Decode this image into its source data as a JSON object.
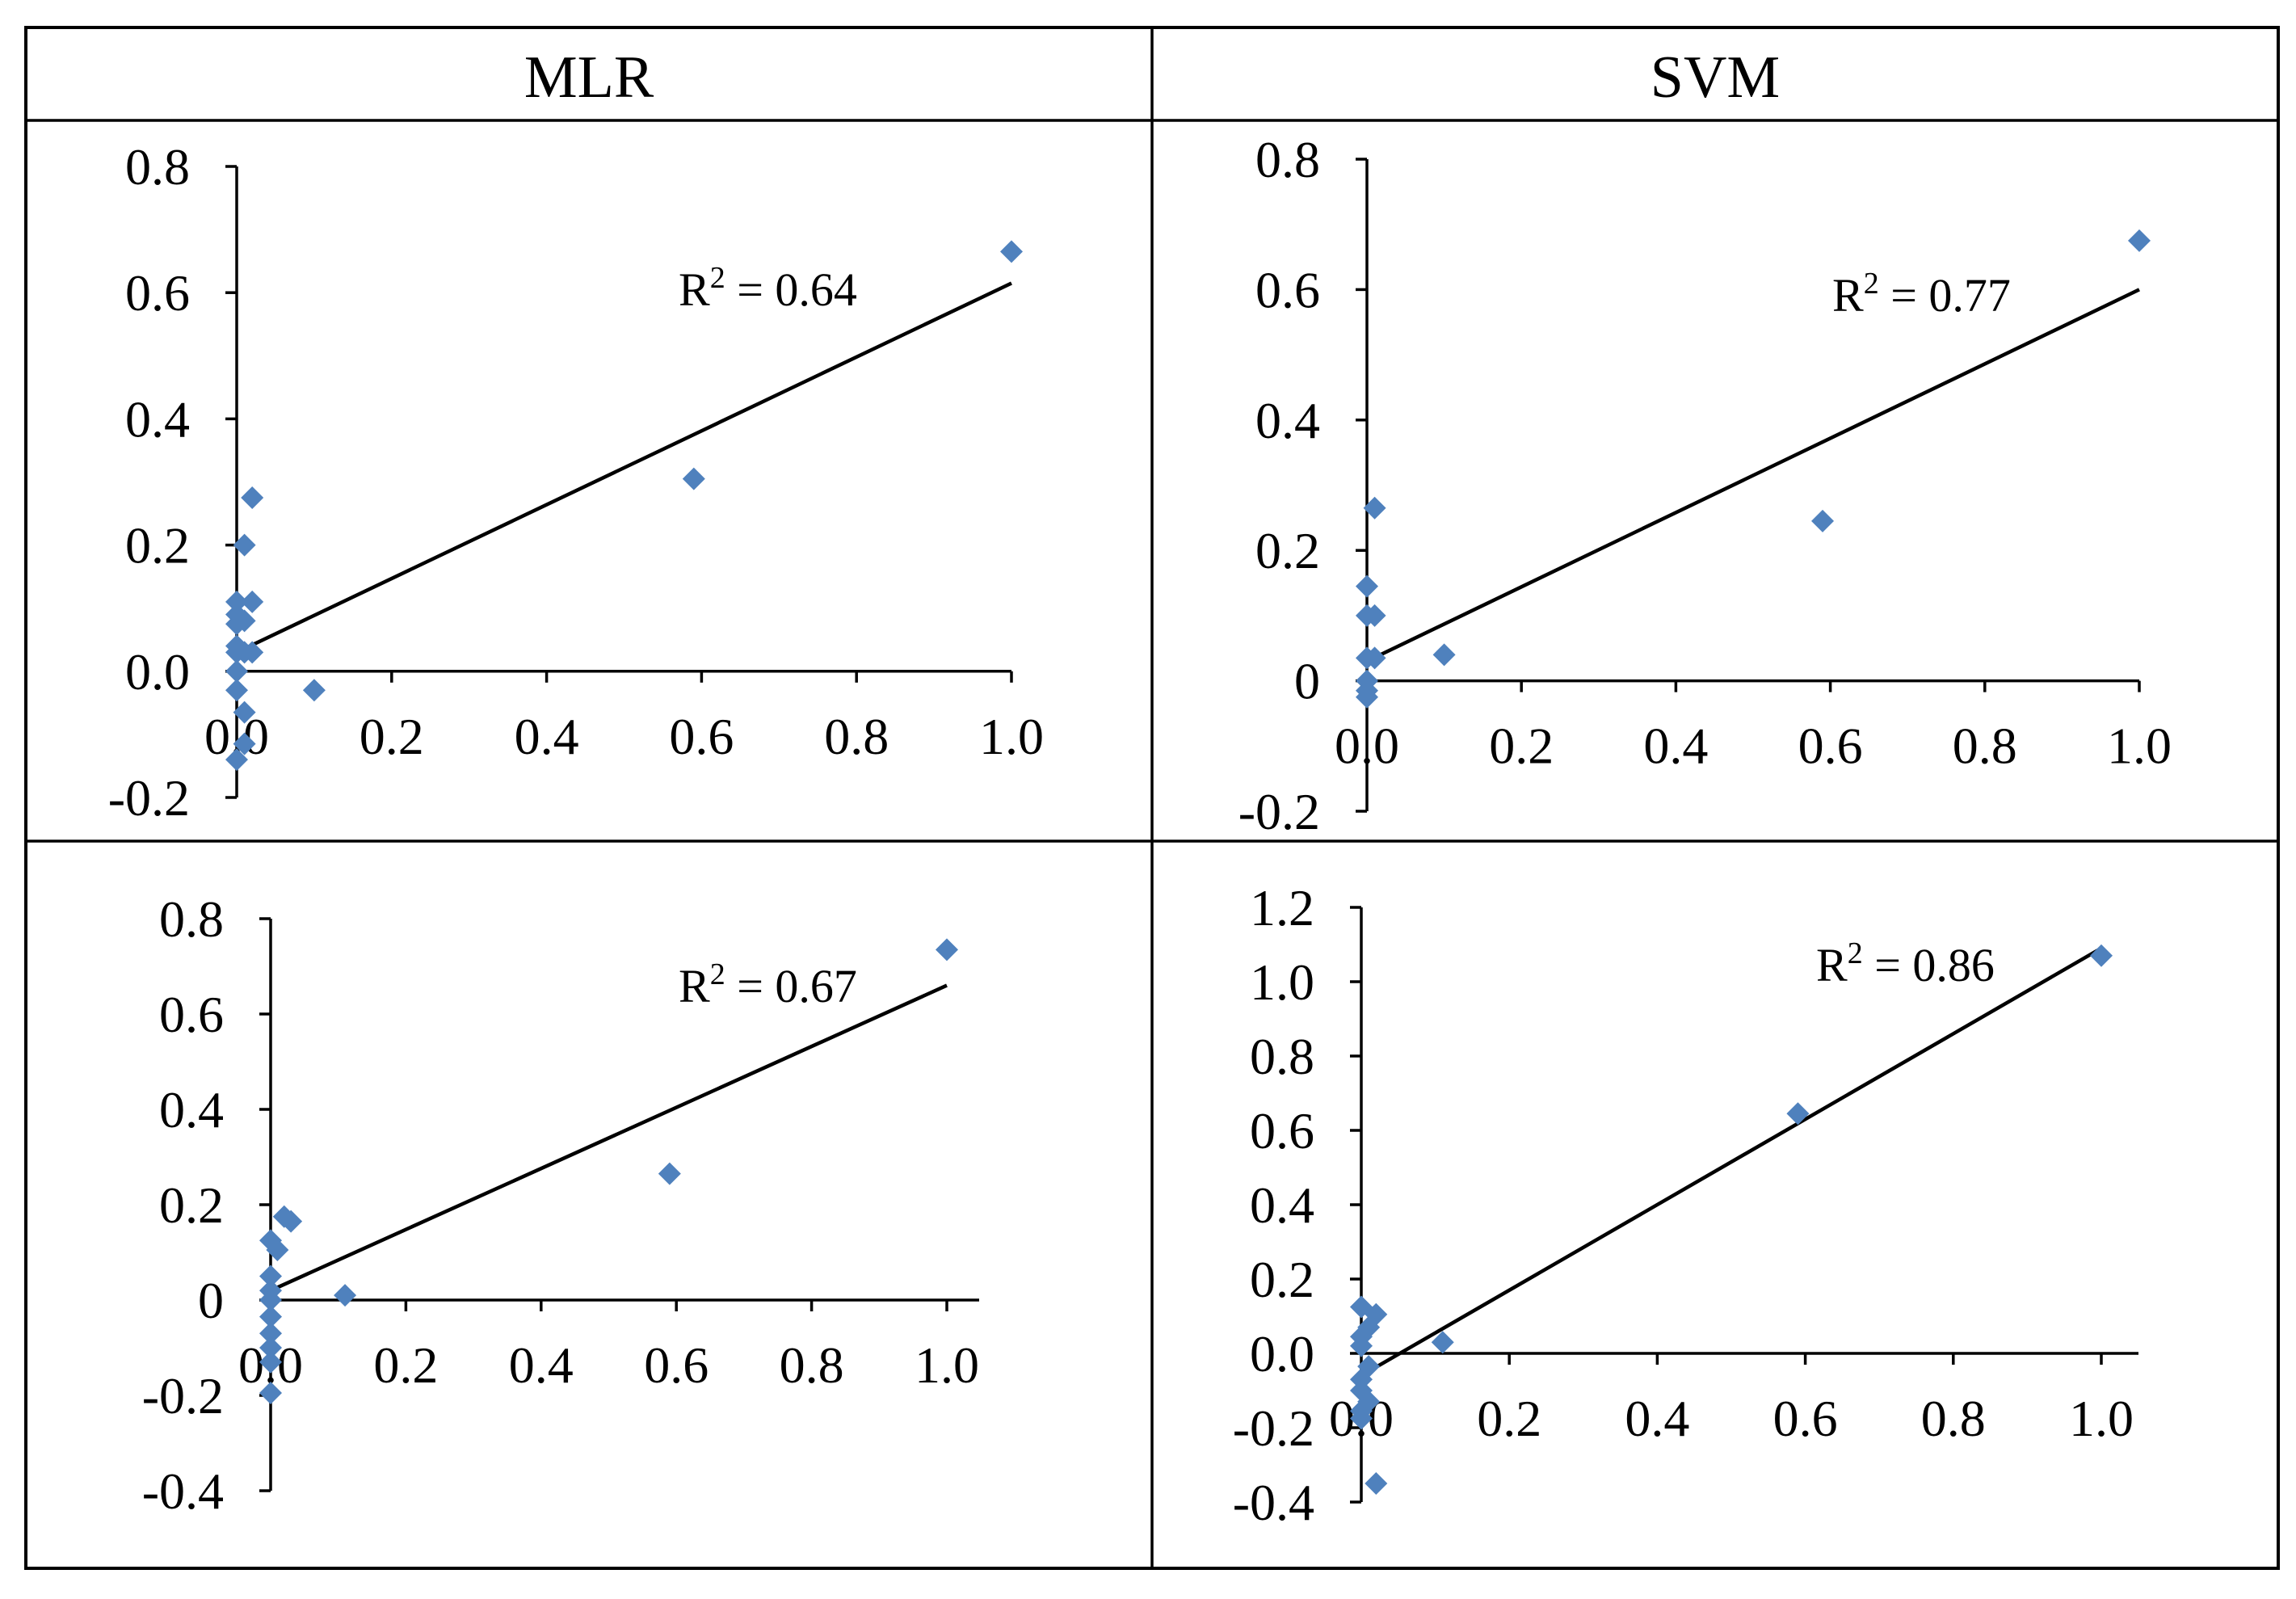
{
  "headers": {
    "left": "MLR",
    "right": "SVM"
  },
  "colors": {
    "point": "#4f81bd",
    "line": "#000000"
  },
  "chart_data": [
    {
      "type": "scatter",
      "title": "MLR",
      "r2_label": "R² = 0.64",
      "r2_prefix": "R",
      "r2_sup": "2",
      "r2_value": " = 0.64",
      "xlim": [
        0,
        1.0
      ],
      "ylim": [
        -0.2,
        0.8
      ],
      "x_ticks": [
        "0.0",
        "0.2",
        "0.4",
        "0.6",
        "0.8",
        "1.0"
      ],
      "x_tick_values": [
        0,
        0.2,
        0.4,
        0.6,
        0.8,
        1.0
      ],
      "y_ticks": [
        "-0.2",
        "0.0",
        "0.2",
        "0.4",
        "0.6",
        "0.8"
      ],
      "y_tick_values": [
        -0.2,
        0,
        0.2,
        0.4,
        0.6,
        0.8
      ],
      "x": [
        1.0,
        0.59,
        0.1,
        0.02,
        0.01,
        0.0,
        0.0,
        0.02,
        0.0,
        0.01,
        0.0,
        0.0,
        0.01,
        0.02,
        0.0,
        0.0,
        0.01,
        0.01,
        0.0
      ],
      "y": [
        0.665,
        0.305,
        -0.03,
        0.275,
        0.2,
        0.11,
        0.09,
        0.11,
        0.075,
        0.08,
        0.04,
        0.03,
        0.03,
        0.03,
        0.0,
        -0.03,
        -0.065,
        -0.115,
        -0.14
      ],
      "trendline": {
        "x0": 0.0,
        "y0": 0.03,
        "x1": 1.0,
        "y1": 0.615
      }
    },
    {
      "type": "scatter",
      "title": "SVM",
      "r2_label": "R² = 0.77",
      "r2_prefix": "R",
      "r2_sup": "2",
      "r2_value": " = 0.77",
      "xlim": [
        0,
        1.0
      ],
      "ylim": [
        -0.2,
        0.8
      ],
      "x_ticks": [
        "0.0",
        "0.2",
        "0.4",
        "0.6",
        "0.8",
        "1.0"
      ],
      "x_tick_values": [
        0,
        0.2,
        0.4,
        0.6,
        0.8,
        1.0
      ],
      "y_ticks": [
        "-0.2",
        "0",
        "0.2",
        "0.4",
        "0.6",
        "0.8"
      ],
      "y_tick_values": [
        -0.2,
        0,
        0.2,
        0.4,
        0.6,
        0.8
      ],
      "x": [
        1.0,
        0.59,
        0.1,
        0.01,
        0.0,
        0.0,
        0.01,
        0.0,
        0.01,
        0.0,
        0.0,
        0.0
      ],
      "y": [
        0.675,
        0.245,
        0.04,
        0.265,
        0.145,
        0.1,
        0.1,
        0.035,
        0.035,
        0.0,
        -0.015,
        -0.025
      ],
      "trendline": {
        "x0": 0.0,
        "y0": 0.03,
        "x1": 1.0,
        "y1": 0.6
      }
    },
    {
      "type": "scatter",
      "title": "MLR",
      "r2_label": "R² = 0.67",
      "r2_prefix": "R",
      "r2_sup": "2",
      "r2_value": " = 0.67",
      "xlim": [
        0,
        1.05
      ],
      "ylim": [
        -0.4,
        0.8
      ],
      "x_ticks": [
        "0.0",
        "0.2",
        "0.4",
        "0.6",
        "0.8",
        "1.0"
      ],
      "x_tick_values": [
        0,
        0.2,
        0.4,
        0.6,
        0.8,
        1.0
      ],
      "y_ticks": [
        "-0.4",
        "-0.2",
        "0",
        "0.2",
        "0.4",
        "0.6",
        "0.8"
      ],
      "y_tick_values": [
        -0.4,
        -0.2,
        0,
        0.2,
        0.4,
        0.6,
        0.8
      ],
      "x": [
        1.0,
        0.59,
        0.11,
        0.02,
        0.03,
        0.0,
        0.01,
        0.0,
        0.0,
        0.0,
        0.0,
        0.0,
        0.0,
        0.0,
        0.0
      ],
      "y": [
        0.735,
        0.265,
        0.01,
        0.175,
        0.165,
        0.125,
        0.105,
        0.05,
        0.02,
        0.0,
        -0.035,
        -0.07,
        -0.1,
        -0.13,
        -0.195
      ],
      "trendline": {
        "x0": 0.0,
        "y0": 0.02,
        "x1": 1.0,
        "y1": 0.66
      }
    },
    {
      "type": "scatter",
      "title": "SVM",
      "r2_label": "R² = 0.86",
      "r2_prefix": "R",
      "r2_sup": "2",
      "r2_value": " = 0.86",
      "xlim": [
        0,
        1.05
      ],
      "ylim": [
        -0.4,
        1.2
      ],
      "x_ticks": [
        "0.0",
        "0.2",
        "0.4",
        "0.6",
        "0.8",
        "1.0"
      ],
      "x_tick_values": [
        0,
        0.2,
        0.4,
        0.6,
        0.8,
        1.0
      ],
      "y_ticks": [
        "-0.4",
        "-0.2",
        "0.0",
        "0.2",
        "0.4",
        "0.6",
        "0.8",
        "1.0",
        "1.2"
      ],
      "y_tick_values": [
        -0.4,
        -0.2,
        0,
        0.2,
        0.4,
        0.6,
        0.8,
        1.0,
        1.2
      ],
      "x": [
        1.0,
        0.59,
        0.11,
        0.02,
        0.0,
        0.01,
        0.0,
        0.0,
        0.01,
        0.0,
        0.0,
        0.01,
        0.0,
        0.0,
        0.02
      ],
      "y": [
        1.07,
        0.645,
        0.03,
        0.105,
        0.125,
        0.07,
        0.045,
        0.02,
        -0.035,
        -0.07,
        -0.1,
        -0.13,
        -0.155,
        -0.175,
        -0.35
      ],
      "trendline": {
        "x0": 0.0,
        "y0": -0.06,
        "x1": 1.0,
        "y1": 1.09
      }
    }
  ]
}
